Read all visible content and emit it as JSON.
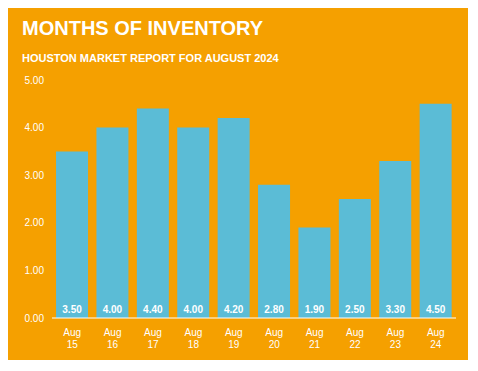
{
  "chart_data": {
    "type": "bar",
    "title": "MONTHS OF INVENTORY",
    "subtitle": "HOUSTON MARKET REPORT FOR AUGUST 2024",
    "categories": [
      "Aug\n15",
      "Aug\n16",
      "Aug\n17",
      "Aug\n18",
      "Aug\n19",
      "Aug\n20",
      "Aug\n21",
      "Aug\n22",
      "Aug\n23",
      "Aug\n24"
    ],
    "values": [
      3.5,
      4.0,
      4.4,
      4.0,
      4.2,
      2.8,
      1.9,
      2.5,
      3.3,
      4.5
    ],
    "value_labels": [
      "3.50",
      "4.00",
      "4.40",
      "4.00",
      "4.20",
      "2.80",
      "1.90",
      "2.50",
      "3.30",
      "4.50"
    ],
    "data_labels": true,
    "color": "#5bbcd6",
    "ylim": [
      0,
      5.0
    ],
    "yticks": [
      {
        "value": 0,
        "label": "0.00"
      },
      {
        "value": 1,
        "label": "1.00"
      },
      {
        "value": 2,
        "label": "2.00"
      },
      {
        "value": 3,
        "label": "3.00"
      },
      {
        "value": 4,
        "label": "4.00"
      },
      {
        "value": 5,
        "label": "5.00"
      }
    ],
    "grid": false
  }
}
